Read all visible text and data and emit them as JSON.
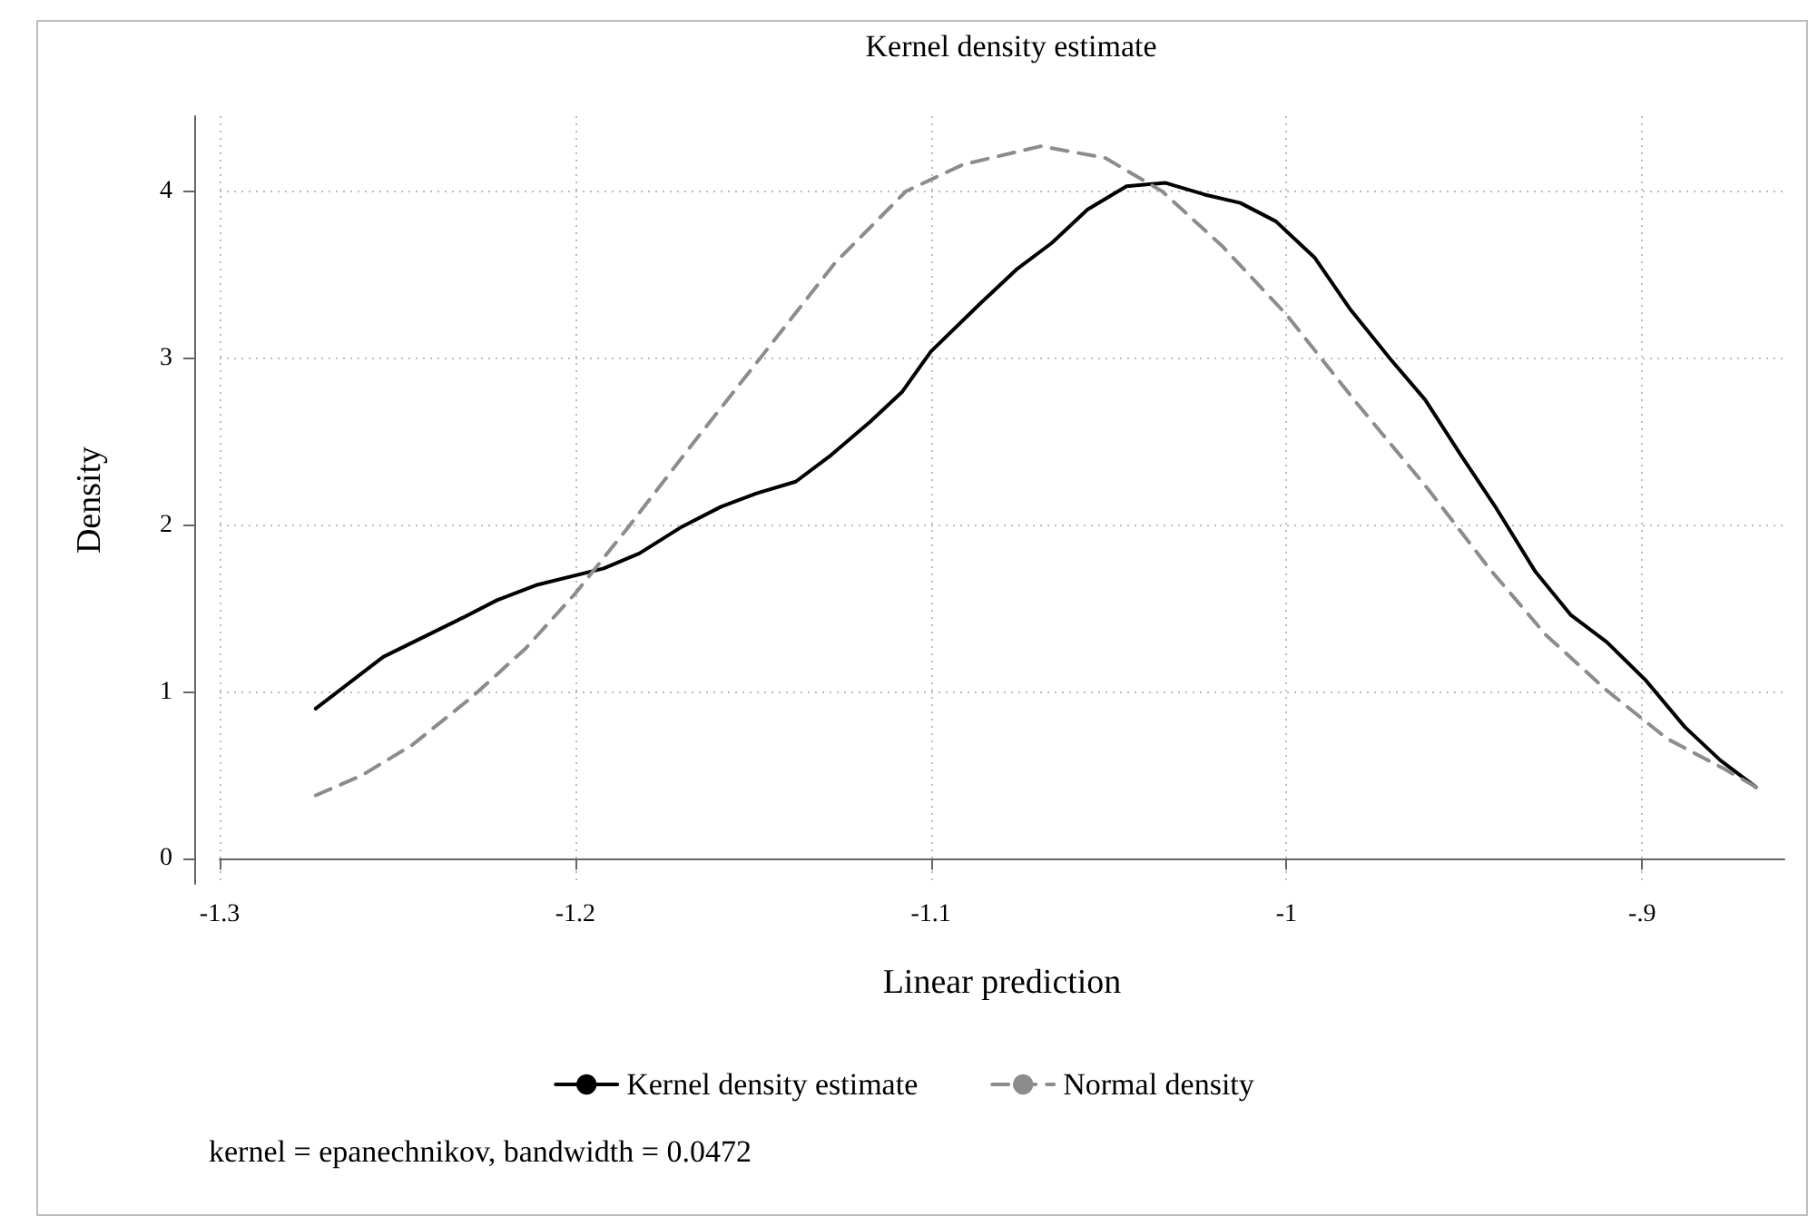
{
  "chart_data": {
    "type": "line",
    "title": "Kernel density estimate",
    "xlabel": "Linear prediction",
    "ylabel": "Density",
    "annotations": [
      "kernel = epanechnikov, bandwidth = 0.0472"
    ],
    "xlim": [
      -1.3,
      -0.86
    ],
    "xticks": [
      -1.3,
      -1.2,
      -1.1,
      -1,
      {
        "value": -0.9,
        "label": "-.9"
      }
    ],
    "ylim": [
      -0.15,
      4.45
    ],
    "yticks": [
      0,
      1,
      2,
      3,
      4
    ],
    "grid": true,
    "legend": "bottom",
    "marker": "none",
    "series": [
      {
        "name": "Kernel density estimate",
        "color": "#000000",
        "line_style": "solid",
        "x": [
          -1.273,
          -1.254,
          -1.233,
          -1.222,
          -1.211,
          -1.192,
          -1.182,
          -1.17,
          -1.159,
          -1.149,
          -1.138,
          -1.128,
          -1.117,
          -1.108,
          -1.1,
          -1.086,
          -1.076,
          -1.066,
          -1.056,
          -1.045,
          -1.034,
          -1.023,
          -1.013,
          -1.003,
          -0.992,
          -0.982,
          -0.971,
          -0.961,
          -0.951,
          -0.941,
          -0.93,
          -0.92,
          -0.91,
          -0.899,
          -0.888,
          -0.878,
          -0.868
        ],
        "values": [
          0.9,
          1.21,
          1.43,
          1.55,
          1.64,
          1.74,
          1.83,
          1.99,
          2.11,
          2.19,
          2.26,
          2.42,
          2.62,
          2.8,
          3.04,
          3.33,
          3.53,
          3.69,
          3.89,
          4.03,
          4.05,
          3.98,
          3.93,
          3.82,
          3.6,
          3.29,
          3.0,
          2.75,
          2.42,
          2.1,
          1.72,
          1.46,
          1.3,
          1.07,
          0.79,
          0.59,
          0.43
        ]
      },
      {
        "name": "Normal density",
        "color": "#8c8c8c",
        "line_style": "dashed",
        "x": [
          -1.273,
          -1.26,
          -1.246,
          -1.229,
          -1.214,
          -1.2,
          -1.185,
          -1.168,
          -1.148,
          -1.127,
          -1.107,
          -1.091,
          -1.069,
          -1.051,
          -1.035,
          -1.018,
          -1.0,
          -0.981,
          -0.96,
          -0.943,
          -0.927,
          -0.91,
          -0.893,
          -0.877,
          -0.868
        ],
        "values": [
          0.38,
          0.5,
          0.68,
          0.97,
          1.26,
          1.59,
          1.99,
          2.46,
          3.0,
          3.57,
          4.0,
          4.16,
          4.27,
          4.2,
          4.0,
          3.67,
          3.26,
          2.75,
          2.21,
          1.74,
          1.34,
          1.01,
          0.72,
          0.54,
          0.43
        ]
      }
    ]
  }
}
